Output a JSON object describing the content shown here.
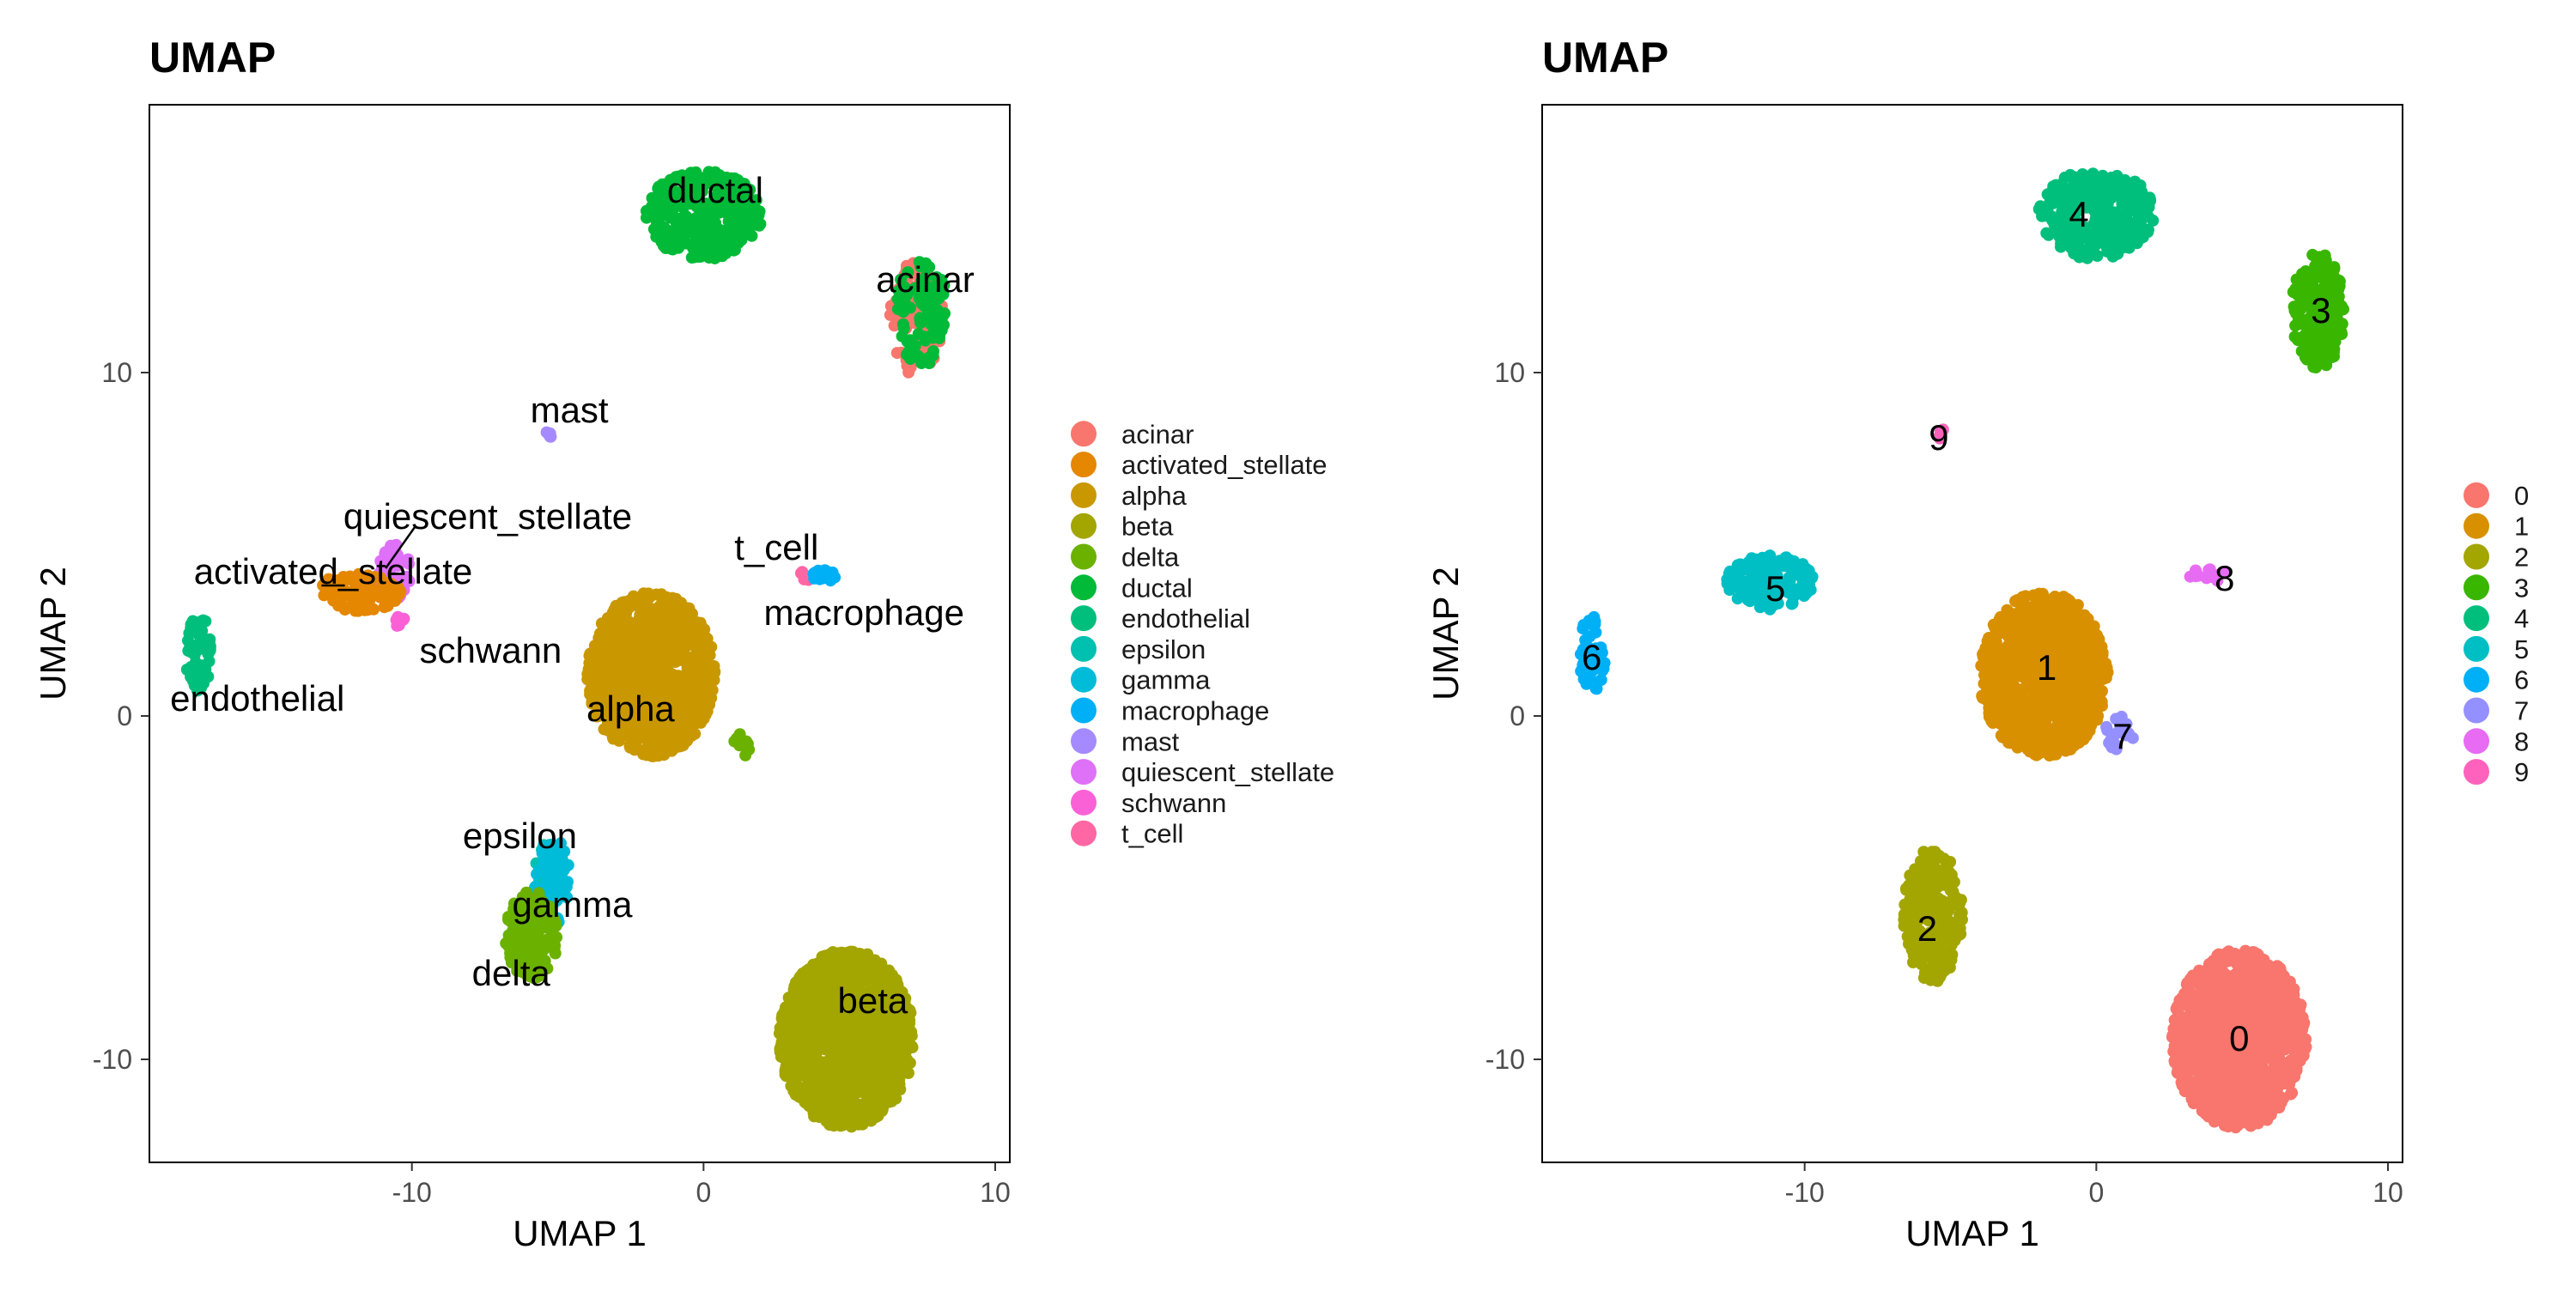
{
  "chart_data": [
    {
      "type": "scatter",
      "title": "UMAP",
      "xlabel": "UMAP 1",
      "ylabel": "UMAP 2",
      "xlim": [
        -19,
        10.5
      ],
      "ylim": [
        -13,
        17.8
      ],
      "x_ticks": [
        -10,
        0,
        10
      ],
      "y_ticks": [
        -10,
        0,
        10
      ],
      "grid": false,
      "legend_position": "right",
      "legend": [
        "acinar",
        "activated_stellate",
        "alpha",
        "beta",
        "delta",
        "ductal",
        "endothelial",
        "epsilon",
        "gamma",
        "macrophage",
        "mast",
        "quiescent_stellate",
        "schwann",
        "t_cell"
      ],
      "colors": [
        "#F8766D",
        "#E58700",
        "#C99800",
        "#A3A500",
        "#6BB100",
        "#00BA38",
        "#00BF7D",
        "#00C0AF",
        "#00BCD8",
        "#00B0F6",
        "#A58AFF",
        "#DF70F8",
        "#FB61D7",
        "#FF67A4"
      ],
      "clusters": [
        {
          "name": "acinar",
          "color": "#F8766D",
          "x": 7.3,
          "y": 11.6,
          "rx": 0.9,
          "ry": 1.7,
          "n": 110
        },
        {
          "name": "ductal",
          "color": "#00BA38",
          "x": 7.5,
          "y": 11.8,
          "rx": 0.9,
          "ry": 1.6,
          "n": 90
        },
        {
          "name": "ductal",
          "color": "#00BA38",
          "x": 0.0,
          "y": 14.6,
          "rx": 2.0,
          "ry": 1.3,
          "n": 320
        },
        {
          "name": "mast",
          "color": "#A58AFF",
          "x": -5.3,
          "y": 8.2,
          "rx": 0.15,
          "ry": 0.15,
          "n": 6
        },
        {
          "name": "quiescent_stellate",
          "color": "#DF70F8",
          "x": -10.6,
          "y": 4.2,
          "rx": 0.55,
          "ry": 0.8,
          "n": 45
        },
        {
          "name": "activated_stellate",
          "color": "#E58700",
          "x": -11.8,
          "y": 3.6,
          "rx": 1.5,
          "ry": 0.55,
          "n": 90
        },
        {
          "name": "schwann",
          "color": "#FB61D7",
          "x": -10.4,
          "y": 2.7,
          "rx": 0.2,
          "ry": 0.25,
          "n": 6
        },
        {
          "name": "endothelial",
          "color": "#00BF7D",
          "x": -17.3,
          "y": 1.8,
          "rx": 0.45,
          "ry": 1.1,
          "n": 55
        },
        {
          "name": "t_cell",
          "color": "#FF67A4",
          "x": 3.5,
          "y": 4.1,
          "rx": 0.25,
          "ry": 0.15,
          "n": 5
        },
        {
          "name": "macrophage",
          "color": "#00B0F6",
          "x": 4.2,
          "y": 4.1,
          "rx": 0.6,
          "ry": 0.18,
          "n": 14
        },
        {
          "name": "alpha",
          "color": "#C99800",
          "x": -1.8,
          "y": 1.2,
          "rx": 2.2,
          "ry": 2.4,
          "n": 900
        },
        {
          "name": "delta",
          "color": "#6BB100",
          "x": 1.3,
          "y": -0.8,
          "rx": 0.3,
          "ry": 0.4,
          "n": 10
        },
        {
          "name": "epsilon",
          "color": "#00C0AF",
          "x": -5.3,
          "y": -4.4,
          "rx": 0.5,
          "ry": 0.7,
          "n": 45
        },
        {
          "name": "gamma",
          "color": "#00BCD8",
          "x": -5.2,
          "y": -4.8,
          "rx": 0.6,
          "ry": 1.3,
          "n": 70
        },
        {
          "name": "delta",
          "color": "#6BB100",
          "x": -5.9,
          "y": -6.4,
          "rx": 0.9,
          "ry": 1.3,
          "n": 140
        },
        {
          "name": "beta",
          "color": "#A3A500",
          "x": 4.9,
          "y": -9.4,
          "rx": 2.3,
          "ry": 2.6,
          "n": 1200
        }
      ],
      "labels": [
        {
          "text": "ductal",
          "x": 0.4,
          "y": 15.3
        },
        {
          "text": "acinar",
          "x": 7.6,
          "y": 12.7
        },
        {
          "text": "mast",
          "x": -4.6,
          "y": 8.9
        },
        {
          "text": "quiescent_stellate",
          "x": -7.4,
          "y": 5.8
        },
        {
          "text": "activated_stellate",
          "x": -12.7,
          "y": 4.2
        },
        {
          "text": "t_cell",
          "x": 2.5,
          "y": 4.9
        },
        {
          "text": "macrophage",
          "x": 5.5,
          "y": 3.0
        },
        {
          "text": "schwann",
          "x": -7.3,
          "y": 1.9
        },
        {
          "text": "endothelial",
          "x": -15.3,
          "y": 0.5
        },
        {
          "text": "alpha",
          "x": -2.5,
          "y": 0.2
        },
        {
          "text": "epsilon",
          "x": -6.3,
          "y": -3.5
        },
        {
          "text": "gamma",
          "x": -4.5,
          "y": -5.5
        },
        {
          "text": "delta",
          "x": -6.6,
          "y": -7.5
        },
        {
          "text": "beta",
          "x": 5.8,
          "y": -8.3
        }
      ]
    },
    {
      "type": "scatter",
      "title": "UMAP",
      "xlabel": "UMAP 1",
      "ylabel": "UMAP 2",
      "xlim": [
        -19,
        10.5
      ],
      "ylim": [
        -13,
        17.8
      ],
      "x_ticks": [
        -10,
        0,
        10
      ],
      "y_ticks": [
        -10,
        0,
        10
      ],
      "grid": false,
      "legend_position": "right",
      "legend": [
        "0",
        "1",
        "2",
        "3",
        "4",
        "5",
        "6",
        "7",
        "8",
        "9"
      ],
      "colors": [
        "#F8766D",
        "#D89000",
        "#A3A500",
        "#39B600",
        "#00BF7D",
        "#00BFC4",
        "#00B0F6",
        "#9590FF",
        "#E76BF3",
        "#FF62BC"
      ],
      "clusters": [
        {
          "name": "0",
          "color": "#F8766D",
          "x": 4.9,
          "y": -9.4,
          "rx": 2.3,
          "ry": 2.6,
          "n": 1200
        },
        {
          "name": "1",
          "color": "#D89000",
          "x": -1.8,
          "y": 1.2,
          "rx": 2.2,
          "ry": 2.4,
          "n": 900
        },
        {
          "name": "2",
          "color": "#A3A500",
          "x": -5.6,
          "y": -5.8,
          "rx": 1.0,
          "ry": 2.0,
          "n": 220
        },
        {
          "name": "3",
          "color": "#39B600",
          "x": 7.6,
          "y": 11.8,
          "rx": 0.9,
          "ry": 1.7,
          "n": 200
        },
        {
          "name": "4",
          "color": "#00BF7D",
          "x": 0.0,
          "y": 14.6,
          "rx": 2.0,
          "ry": 1.3,
          "n": 320
        },
        {
          "name": "5",
          "color": "#00BFC4",
          "x": -11.2,
          "y": 3.9,
          "rx": 1.5,
          "ry": 0.8,
          "n": 140
        },
        {
          "name": "6",
          "color": "#00B0F6",
          "x": -17.3,
          "y": 1.8,
          "rx": 0.45,
          "ry": 1.1,
          "n": 55
        },
        {
          "name": "7",
          "color": "#9590FF",
          "x": 0.8,
          "y": -0.5,
          "rx": 0.5,
          "ry": 0.5,
          "n": 25
        },
        {
          "name": "8",
          "color": "#E76BF3",
          "x": 3.9,
          "y": 4.1,
          "rx": 0.7,
          "ry": 0.2,
          "n": 16
        },
        {
          "name": "9",
          "color": "#FF62BC",
          "x": -5.3,
          "y": 8.2,
          "rx": 0.15,
          "ry": 0.15,
          "n": 6
        }
      ],
      "labels": [
        {
          "text": "4",
          "x": -0.6,
          "y": 14.6
        },
        {
          "text": "3",
          "x": 7.7,
          "y": 11.8
        },
        {
          "text": "9",
          "x": -5.4,
          "y": 8.1
        },
        {
          "text": "5",
          "x": -11.0,
          "y": 3.7
        },
        {
          "text": "8",
          "x": 4.4,
          "y": 4.0
        },
        {
          "text": "6",
          "x": -17.3,
          "y": 1.7
        },
        {
          "text": "1",
          "x": -1.7,
          "y": 1.4
        },
        {
          "text": "7",
          "x": 0.9,
          "y": -0.6
        },
        {
          "text": "2",
          "x": -5.8,
          "y": -6.2
        },
        {
          "text": "0",
          "x": 4.9,
          "y": -9.4
        }
      ]
    }
  ]
}
